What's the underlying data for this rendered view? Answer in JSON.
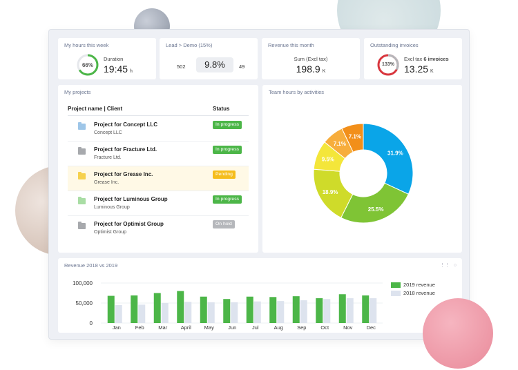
{
  "hours": {
    "title": "My hours this week",
    "percent_label": "66%",
    "percent": 66,
    "label": "Duration",
    "value": "19:45",
    "unit": "h",
    "color": "#4cb648"
  },
  "lead": {
    "title": "Lead > Demo (15%)",
    "left": "502",
    "rate": "9.8%",
    "right": "49"
  },
  "revenue_month": {
    "title": "Revenue this month",
    "label": "Sum (Excl tax)",
    "value": "198.9",
    "unit": "K"
  },
  "invoices": {
    "title": "Outstanding invoices",
    "percent_label": "133%",
    "percent": 133,
    "label_prefix": "Excl tax",
    "label_count": "6 invoices",
    "value": "13.25",
    "unit": "K",
    "color": "#d9363e"
  },
  "projects": {
    "title": "My projects",
    "col_name": "Project name | Client",
    "col_status": "Status",
    "rows": [
      {
        "name": "Project for Concept LLC",
        "client": "Concept LLC",
        "status": "In progress",
        "folder_color": "#9ec6e8",
        "badge_color": "#4cb648"
      },
      {
        "name": "Project for Fracture Ltd.",
        "client": "Fracture Ltd.",
        "status": "In progress",
        "folder_color": "#a7a9ad",
        "badge_color": "#4cb648"
      },
      {
        "name": "Project for Grease Inc.",
        "client": "Grease Inc.",
        "status": "Pending",
        "folder_color": "#f6d14d",
        "badge_color": "#f5bd1c"
      },
      {
        "name": "Project for Luminous Group",
        "client": "Luminous Group",
        "status": "In progress",
        "folder_color": "#a9dda4",
        "badge_color": "#4cb648"
      },
      {
        "name": "Project for Optimist Group",
        "client": "Optimist Group",
        "status": "On hold",
        "folder_color": "#a7a9ad",
        "badge_color": "#b5b7bb"
      }
    ]
  },
  "team": {
    "title": "Team hours by activities",
    "chart_data": {
      "type": "pie",
      "slices": [
        {
          "label": "31.9%",
          "value": 31.9,
          "color": "#0aa5e8"
        },
        {
          "label": "25.5%",
          "value": 25.5,
          "color": "#7fc435"
        },
        {
          "label": "18.9%",
          "value": 18.9,
          "color": "#cfdb2a"
        },
        {
          "label": "9.5%",
          "value": 9.5,
          "color": "#f4e63a"
        },
        {
          "label": "7.1%",
          "value": 7.1,
          "color": "#f7ad3c"
        },
        {
          "label": "7.1%",
          "value": 7.1,
          "color": "#f28f1a"
        }
      ]
    }
  },
  "revenue": {
    "title": "Revenue 2018 vs 2019",
    "icons": [
      "drag-icon",
      "settings-icon"
    ],
    "chart_data": {
      "type": "bar",
      "categories": [
        "Jan",
        "Feb",
        "Mar",
        "April",
        "May",
        "Jun",
        "Jul",
        "Aug",
        "Sep",
        "Oct",
        "Nov",
        "Dec"
      ],
      "series": [
        {
          "name": "2019 revenue",
          "color": "#4cb648",
          "values": [
            68000,
            69000,
            75000,
            80000,
            66000,
            60000,
            66000,
            65000,
            67000,
            62000,
            72000,
            69000
          ]
        },
        {
          "name": "2018 revenue",
          "color": "#dde3ee",
          "values": [
            45000,
            46000,
            50000,
            53000,
            52000,
            52000,
            54000,
            55000,
            57000,
            60000,
            62000,
            62000
          ]
        }
      ],
      "y_ticks": [
        "100,000",
        "50,000",
        "0"
      ],
      "ylim": [
        0,
        100000
      ]
    }
  }
}
